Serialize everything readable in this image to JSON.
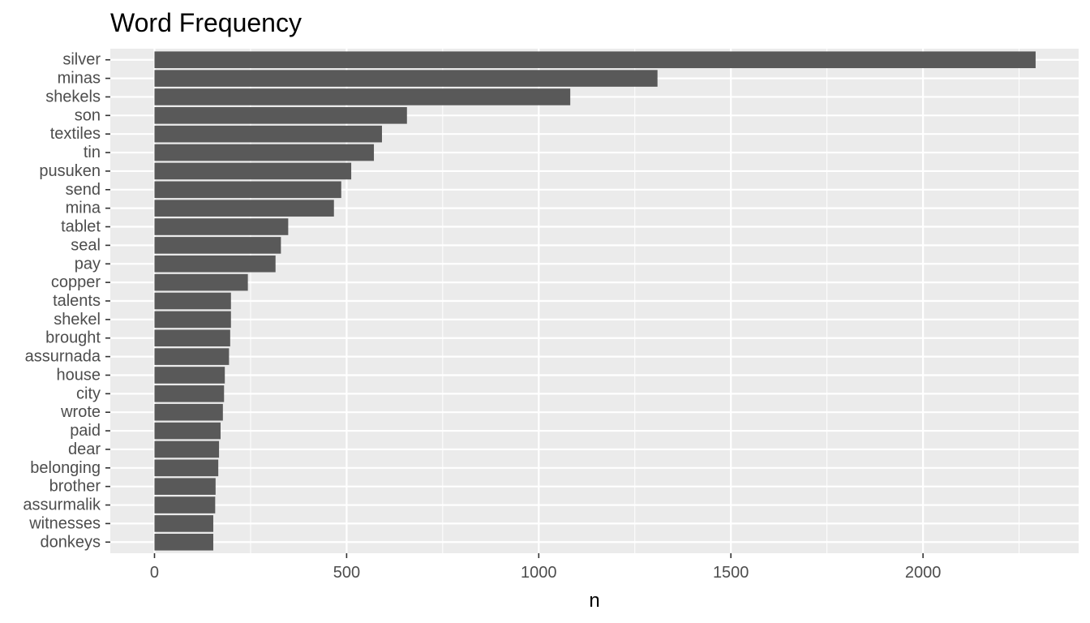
{
  "chart_data": {
    "type": "bar",
    "orientation": "horizontal",
    "title": "Word Frequency",
    "xlabel": "n",
    "ylabel": "",
    "categories": [
      "silver",
      "minas",
      "shekels",
      "son",
      "textiles",
      "tin",
      "pusuken",
      "send",
      "mina",
      "tablet",
      "seal",
      "pay",
      "copper",
      "talents",
      "shekel",
      "brought",
      "assurnada",
      "house",
      "city",
      "wrote",
      "paid",
      "dear",
      "belonging",
      "brother",
      "assurmalik",
      "witnesses",
      "donkeys"
    ],
    "values": [
      2293,
      1309,
      1082,
      657,
      592,
      571,
      512,
      486,
      467,
      348,
      329,
      315,
      243,
      199,
      199,
      197,
      194,
      183,
      181,
      178,
      172,
      168,
      166,
      159,
      158,
      153,
      153
    ],
    "xlim": [
      -115,
      2405
    ],
    "x_ticks": [
      0,
      500,
      1000,
      1500,
      2000
    ],
    "x_tick_labels": [
      "0",
      "500",
      "1000",
      "1500",
      "2000"
    ],
    "grid": true,
    "colors": {
      "bar": "#595959",
      "panel": "#ebebeb",
      "grid": "#ffffff"
    }
  }
}
